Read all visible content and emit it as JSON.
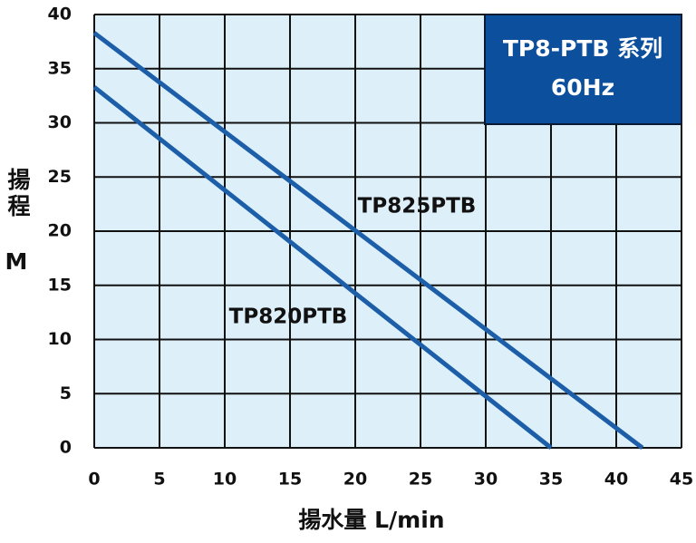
{
  "chart_data": {
    "type": "line",
    "title": "TP8-PTB 系列",
    "subtitle": "60Hz",
    "xlabel": "揚水量 L/min",
    "ylabel": "揚程",
    "yunit": "M",
    "series": [
      {
        "name": "TP825PTB",
        "color": "#1d5ea8",
        "x": [
          0,
          42
        ],
        "values": [
          38.3,
          0
        ]
      },
      {
        "name": "TP820PTB",
        "color": "#1d5ea8",
        "x": [
          0,
          35
        ],
        "values": [
          33.3,
          0
        ]
      }
    ],
    "xlim": [
      0,
      45
    ],
    "xticks": [
      0,
      5,
      10,
      15,
      20,
      25,
      30,
      35,
      40,
      45
    ],
    "ylim": [
      0,
      40
    ],
    "yticks": [
      0,
      5,
      10,
      15,
      20,
      25,
      30,
      35,
      40
    ],
    "grid": true,
    "background": "#ddf0fa",
    "title_box_color": "#0c4f9c"
  }
}
